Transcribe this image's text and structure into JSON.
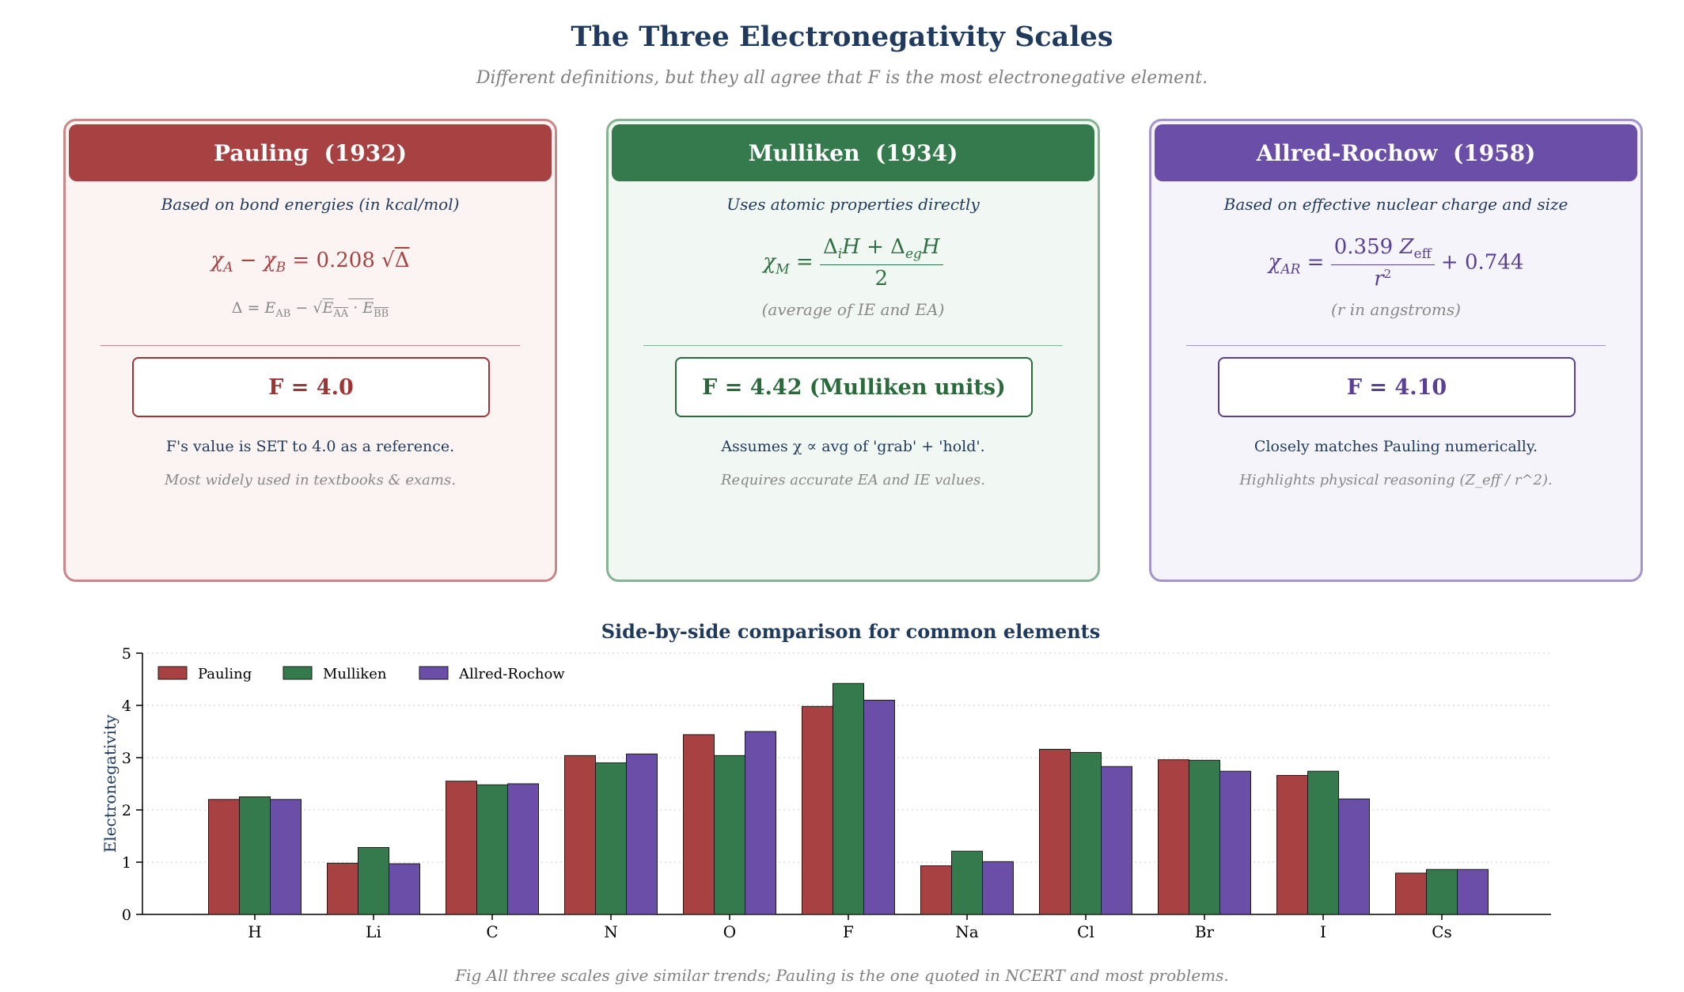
{
  "header": {
    "title": "The Three Electronegativity Scales",
    "subtitle": "Different definitions, but they all agree that F is the most electronegative element."
  },
  "colors": {
    "pauling": "#a84242",
    "mulliken": "#357a4c",
    "allred": "#6a4ea8",
    "navy": "#1f3a5c"
  },
  "panels": [
    {
      "heading": "Pauling  (1932)",
      "basis": "Based on bond energies (in kcal/mol)",
      "formula": "χ_A − χ_B = 0.208 √Δ",
      "note": "Δ = E_AB − √(E_AA · E_BB)",
      "value": "F = 4.0",
      "desc": "F's value is SET to 4.0 as a reference.",
      "desc2": "Most widely used in textbooks & exams."
    },
    {
      "heading": "Mulliken  (1934)",
      "basis": "Uses atomic properties directly",
      "formula": "χ_M = (Δ_i H + Δ_eg H) / 2",
      "note": "(average of IE and EA)",
      "value": "F = 4.42 (Mulliken units)",
      "desc": "Assumes χ ∝ avg of 'grab' + 'hold'.",
      "desc2": "Requires accurate EA and IE values."
    },
    {
      "heading": "Allred-Rochow  (1958)",
      "basis": "Based on effective nuclear charge and size",
      "formula": "χ_AR = 0.359 Z_eff / r² + 0.744",
      "note": "(r in angstroms)",
      "value": "F = 4.10",
      "desc": "Closely matches Pauling numerically.",
      "desc2": "Highlights physical reasoning (Z_eff / r^2)."
    }
  ],
  "chart_data": {
    "type": "bar",
    "title": "Side-by-side comparison for common elements",
    "xlabel": "",
    "ylabel": "Electronegativity",
    "ylim": [
      0,
      5
    ],
    "yticks": [
      0,
      1,
      2,
      3,
      4,
      5
    ],
    "grid": "horizontal dotted",
    "legend_position": "top-left",
    "categories": [
      "H",
      "Li",
      "C",
      "N",
      "O",
      "F",
      "Na",
      "Cl",
      "Br",
      "I",
      "Cs"
    ],
    "series": [
      {
        "name": "Pauling",
        "color": "#a84242",
        "values": [
          2.2,
          0.98,
          2.55,
          3.04,
          3.44,
          3.98,
          0.93,
          3.16,
          2.96,
          2.66,
          0.79
        ]
      },
      {
        "name": "Mulliken",
        "color": "#357a4c",
        "values": [
          2.25,
          1.28,
          2.48,
          2.9,
          3.04,
          4.42,
          1.21,
          3.1,
          2.95,
          2.74,
          0.86
        ]
      },
      {
        "name": "Allred-Rochow",
        "color": "#6a4ea8",
        "values": [
          2.2,
          0.97,
          2.5,
          3.07,
          3.5,
          4.1,
          1.01,
          2.83,
          2.74,
          2.21,
          0.86
        ]
      }
    ]
  },
  "caption": "Fig  All three scales give similar trends; Pauling is the one quoted in NCERT and most problems."
}
